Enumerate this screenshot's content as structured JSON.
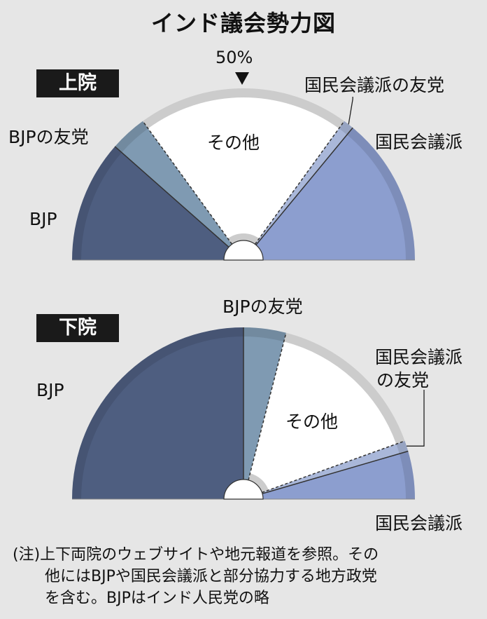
{
  "title": "インド議会勢力図",
  "colors": {
    "BJP": "#4e5e80",
    "BJPの友党": "#7f9ab2",
    "その他": "#ffffff",
    "国民会議派の友党": "#a9b7d9",
    "国民会議派": "#8c9ecf",
    "rim": "#cccccc",
    "background": "#e6e6e6"
  },
  "chart_data": [
    {
      "type": "pie",
      "name": "上院",
      "title": "上院",
      "layout": "semicircle",
      "categories": [
        "BJP",
        "BJPの友党",
        "その他",
        "国民会議派の友党",
        "国民会議派"
      ],
      "values": [
        23,
        7,
        40,
        2,
        28
      ],
      "annotations": [
        "50%"
      ],
      "labels": {
        "BJP": "BJP",
        "BJPの友党": "BJPの友党",
        "その他": "その他",
        "国民会議派の友党": "国民会議派の友党",
        "国民会議派": "国民会議派"
      }
    },
    {
      "type": "pie",
      "name": "下院",
      "title": "下院",
      "layout": "semicircle",
      "categories": [
        "BJP",
        "BJPの友党",
        "その他",
        "国民会議派の友党",
        "国民会議派"
      ],
      "values": [
        50,
        8,
        31,
        2,
        9
      ],
      "labels": {
        "BJP": "BJP",
        "BJPの友党": "BJPの友党",
        "その他": "その他",
        "国民会議派の友党": [
          "国民会議派",
          "の友党"
        ],
        "国民会議派": "国民会議派"
      }
    }
  ],
  "notes": [
    "(注)上下両院のウェブサイトや地元報道を参照。その",
    "他にはBJPや国民会議派と部分協力する地方政党",
    "を含む。BJPはインド人民党の略"
  ]
}
